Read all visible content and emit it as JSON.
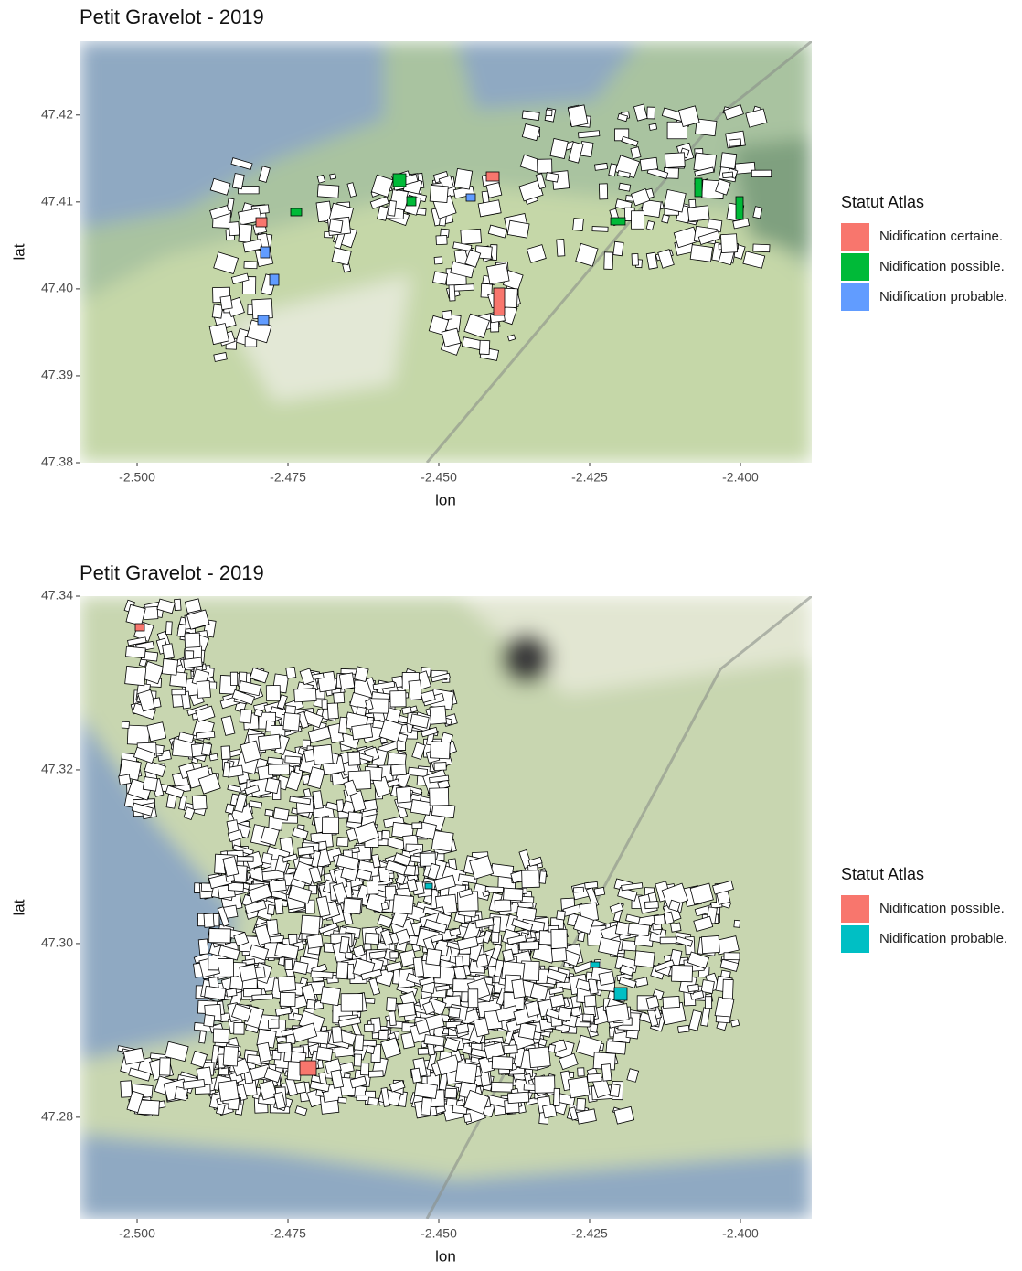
{
  "chart_data": [
    {
      "type": "map",
      "title": "Petit Gravelot - 2019",
      "x_label": "lon",
      "y_label": "lat",
      "xlim": [
        -2.50955,
        -2.38818
      ],
      "ylim": [
        47.38,
        47.4285
      ],
      "xticks": [
        {
          "value": -2.5,
          "label": "-2.500"
        },
        {
          "value": -2.475,
          "label": "-2.475"
        },
        {
          "value": -2.45,
          "label": "-2.450"
        },
        {
          "value": -2.425,
          "label": "-2.425"
        },
        {
          "value": -2.4,
          "label": "-2.400"
        }
      ],
      "yticks": [
        47.38,
        47.39,
        {
          "value": 47.4,
          "label": "47.40"
        },
        47.41,
        47.42
      ],
      "legend_title": "Statut Atlas",
      "legend": "right",
      "series": [
        {
          "name": "Nidification certaine.",
          "color": "#F8766D"
        },
        {
          "name": "Nidification possible.",
          "color": "#00BA38"
        },
        {
          "name": "Nidification probable.",
          "color": "#619CFF"
        }
      ]
    },
    {
      "type": "map",
      "title": "Petit Gravelot - 2019",
      "x_label": "lon",
      "y_label": "lat",
      "xlim": [
        -2.50955,
        -2.38818
      ],
      "ylim": [
        47.2683,
        47.34
      ],
      "xticks": [
        {
          "value": -2.5,
          "label": "-2.500"
        },
        {
          "value": -2.475,
          "label": "-2.475"
        },
        {
          "value": -2.45,
          "label": "-2.450"
        },
        {
          "value": -2.425,
          "label": "-2.425"
        },
        {
          "value": -2.4,
          "label": "-2.400"
        }
      ],
      "yticks": [
        47.28,
        {
          "value": 47.3,
          "label": "47.30"
        },
        47.32,
        47.34
      ],
      "legend_title": "Statut Atlas",
      "legend": "right",
      "series": [
        {
          "name": "Nidification possible.",
          "color": "#F8766D"
        },
        {
          "name": "Nidification probable.",
          "color": "#00BFC4"
        }
      ]
    }
  ]
}
